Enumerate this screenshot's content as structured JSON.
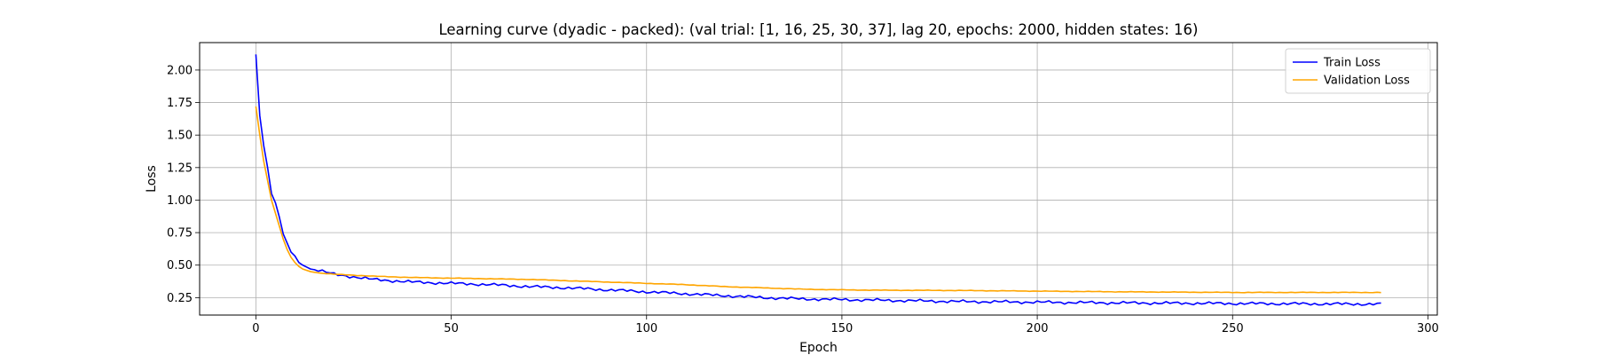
{
  "chart_data": {
    "type": "line",
    "title": "Learning curve (dyadic - packed): (val trial: [1, 16, 25, 30, 37], lag 20, epochs: 2000, hidden states: 16)",
    "xlabel": "Epoch",
    "ylabel": "Loss",
    "xlim": [
      -14.4,
      302.4
    ],
    "ylim": [
      0.116,
      2.211
    ],
    "xticks": [
      0,
      50,
      100,
      150,
      200,
      250,
      300
    ],
    "yticks": [
      0.25,
      0.5,
      0.75,
      1.0,
      1.25,
      1.5,
      1.75,
      2.0
    ],
    "ytick_labels": [
      "0.25",
      "0.50",
      "0.75",
      "1.00",
      "1.25",
      "1.50",
      "1.75",
      "2.00"
    ],
    "grid": true,
    "legend_position": "upper right",
    "epochs": 289,
    "series": [
      {
        "name": "Train Loss",
        "color": "#0000ff",
        "keypoints": [
          [
            0,
            2.12
          ],
          [
            1,
            1.65
          ],
          [
            2,
            1.42
          ],
          [
            3,
            1.25
          ],
          [
            4,
            1.05
          ],
          [
            5,
            0.98
          ],
          [
            6,
            0.87
          ],
          [
            7,
            0.74
          ],
          [
            8,
            0.67
          ],
          [
            9,
            0.6
          ],
          [
            10,
            0.57
          ],
          [
            11,
            0.52
          ],
          [
            12,
            0.5
          ],
          [
            14,
            0.47
          ],
          [
            16,
            0.46
          ],
          [
            20,
            0.43
          ],
          [
            25,
            0.41
          ],
          [
            30,
            0.39
          ],
          [
            35,
            0.38
          ],
          [
            40,
            0.37
          ],
          [
            50,
            0.36
          ],
          [
            60,
            0.35
          ],
          [
            70,
            0.335
          ],
          [
            80,
            0.325
          ],
          [
            90,
            0.31
          ],
          [
            100,
            0.295
          ],
          [
            110,
            0.28
          ],
          [
            120,
            0.265
          ],
          [
            130,
            0.25
          ],
          [
            140,
            0.24
          ],
          [
            150,
            0.235
          ],
          [
            160,
            0.23
          ],
          [
            170,
            0.225
          ],
          [
            180,
            0.22
          ],
          [
            190,
            0.218
          ],
          [
            200,
            0.215
          ],
          [
            220,
            0.21
          ],
          [
            250,
            0.205
          ],
          [
            288,
            0.2
          ]
        ],
        "noise": 0.008
      },
      {
        "name": "Validation Loss",
        "color": "#ffa500",
        "keypoints": [
          [
            0,
            1.72
          ],
          [
            1,
            1.5
          ],
          [
            2,
            1.3
          ],
          [
            3,
            1.15
          ],
          [
            4,
            1.0
          ],
          [
            5,
            0.9
          ],
          [
            6,
            0.8
          ],
          [
            7,
            0.7
          ],
          [
            8,
            0.62
          ],
          [
            9,
            0.56
          ],
          [
            10,
            0.52
          ],
          [
            11,
            0.49
          ],
          [
            12,
            0.47
          ],
          [
            14,
            0.45
          ],
          [
            16,
            0.44
          ],
          [
            20,
            0.43
          ],
          [
            30,
            0.415
          ],
          [
            40,
            0.405
          ],
          [
            50,
            0.4
          ],
          [
            60,
            0.395
          ],
          [
            70,
            0.39
          ],
          [
            80,
            0.38
          ],
          [
            90,
            0.37
          ],
          [
            100,
            0.36
          ],
          [
            110,
            0.35
          ],
          [
            120,
            0.335
          ],
          [
            130,
            0.325
          ],
          [
            140,
            0.315
          ],
          [
            150,
            0.31
          ],
          [
            160,
            0.307
          ],
          [
            180,
            0.305
          ],
          [
            200,
            0.3
          ],
          [
            220,
            0.295
          ],
          [
            250,
            0.29
          ],
          [
            288,
            0.29
          ]
        ],
        "noise": 0.0015
      }
    ]
  }
}
